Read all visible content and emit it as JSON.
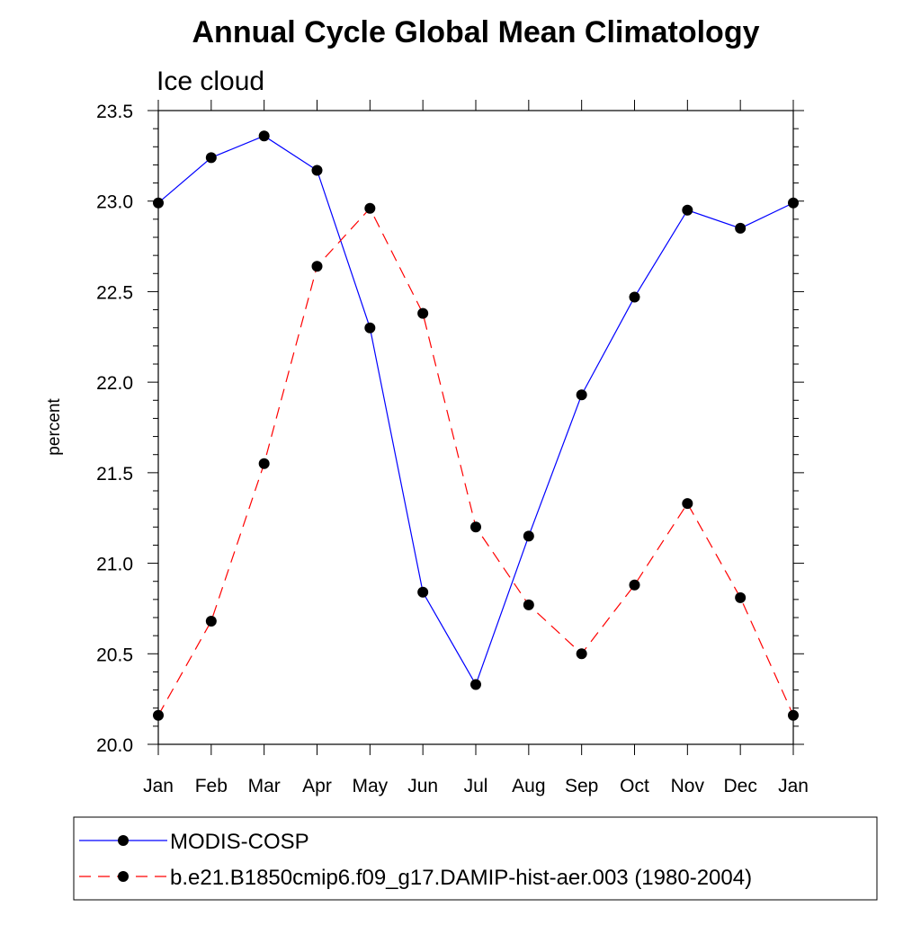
{
  "chart_data": {
    "type": "line",
    "title": "Annual Cycle Global Mean Climatology",
    "subtitle": "Ice cloud",
    "xlabel": "",
    "ylabel": "percent",
    "categories": [
      "Jan",
      "Feb",
      "Mar",
      "Apr",
      "May",
      "Jun",
      "Jul",
      "Aug",
      "Sep",
      "Oct",
      "Nov",
      "Dec",
      "Jan"
    ],
    "ylim": [
      20.0,
      23.5
    ],
    "yticks": [
      "20.0",
      "20.5",
      "21.0",
      "21.5",
      "22.0",
      "22.5",
      "23.0",
      "23.5"
    ],
    "grid": false,
    "legend_position": "bottom",
    "series": [
      {
        "name": "MODIS-COSP",
        "color": "#0000ff",
        "style": "solid",
        "values": [
          22.99,
          23.24,
          23.36,
          23.17,
          22.3,
          20.84,
          20.33,
          21.15,
          21.93,
          22.47,
          22.95,
          22.85,
          22.99
        ]
      },
      {
        "name": "b.e21.B1850cmip6.f09_g17.DAMIP-hist-aer.003 (1980-2004)",
        "color": "#ff0000",
        "style": "dashed",
        "values": [
          20.16,
          20.68,
          21.55,
          22.64,
          22.96,
          22.38,
          21.2,
          20.77,
          20.5,
          20.88,
          21.33,
          20.81,
          20.16
        ]
      }
    ]
  }
}
